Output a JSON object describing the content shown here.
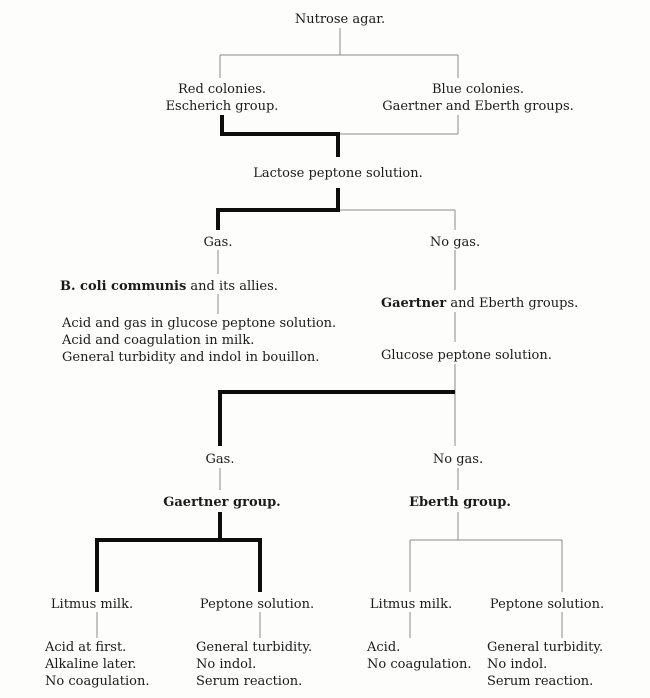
{
  "root": "Nutrose agar.",
  "level1": {
    "left": [
      "Red colonies.",
      "Escherich group."
    ],
    "right": [
      "Blue colonies.",
      "Gaertner and Eberth groups."
    ]
  },
  "lactose": "Lactose peptone solution.",
  "level2": {
    "left": "Gas.",
    "right": "No gas."
  },
  "coli": {
    "title_bold": "B. coli communis",
    "title_rest": " and its allies.",
    "lines": [
      "Acid and gas in glucose peptone solution.",
      "Acid and coagulation in milk.",
      "General turbidity and indol in bouillon."
    ]
  },
  "gaertner_eberth": {
    "bold": "Gaertner",
    "rest": " and Eberth groups."
  },
  "glucose": "Glucose peptone solution.",
  "level3": {
    "left": "Gas.",
    "right": "No gas."
  },
  "gaertner_group": "Gaertner group.",
  "eberth_group": "Eberth group.",
  "leaves": {
    "g_litmus": {
      "title": "Litmus milk.",
      "lines": [
        "Acid at first.",
        "Alkaline later.",
        "No coagulation."
      ]
    },
    "g_peptone": {
      "title": "Peptone solution.",
      "lines": [
        "General turbidity.",
        "No indol.",
        "Serum reaction."
      ]
    },
    "e_litmus": {
      "title": "Litmus milk.",
      "lines": [
        "Acid.",
        "No coagulation."
      ]
    },
    "e_peptone": {
      "title": "Peptone solution.",
      "lines": [
        "General turbidity.",
        "No indol.",
        "Serum reaction."
      ]
    }
  }
}
